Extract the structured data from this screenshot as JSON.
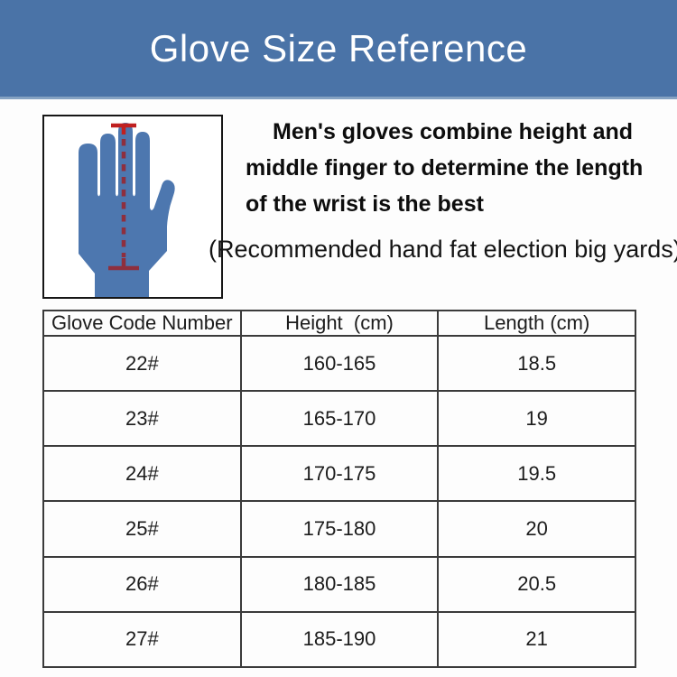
{
  "colors": {
    "banner_bg": "#4a73a7",
    "banner_edge": "#85a2c2",
    "banner_text": "#ffffff",
    "glove_fill": "#4d77af",
    "measure_bright": "#c02020",
    "measure_dark": "#8e2f3e",
    "table_border": "#3b3b3b"
  },
  "banner": {
    "title": "Glove Size Reference"
  },
  "figure": {
    "description": "blue glove silhouette with red dashed line measuring from middle fingertip to wrist"
  },
  "intro": {
    "lines": [
      "Men's gloves combine height and",
      "middle finger to determine the length",
      "of the wrist is the best"
    ],
    "note": "(Recommended hand fat election big yards)"
  },
  "table": {
    "columns": [
      "Glove Code Number",
      "Height  (cm)",
      "Length (cm)"
    ],
    "rows": [
      [
        "22#",
        "160-165",
        "18.5"
      ],
      [
        "23#",
        "165-170",
        "19"
      ],
      [
        "24#",
        "170-175",
        "19.5"
      ],
      [
        "25#",
        "175-180",
        "20"
      ],
      [
        "26#",
        "180-185",
        "20.5"
      ],
      [
        "27#",
        "185-190",
        "21"
      ]
    ]
  }
}
